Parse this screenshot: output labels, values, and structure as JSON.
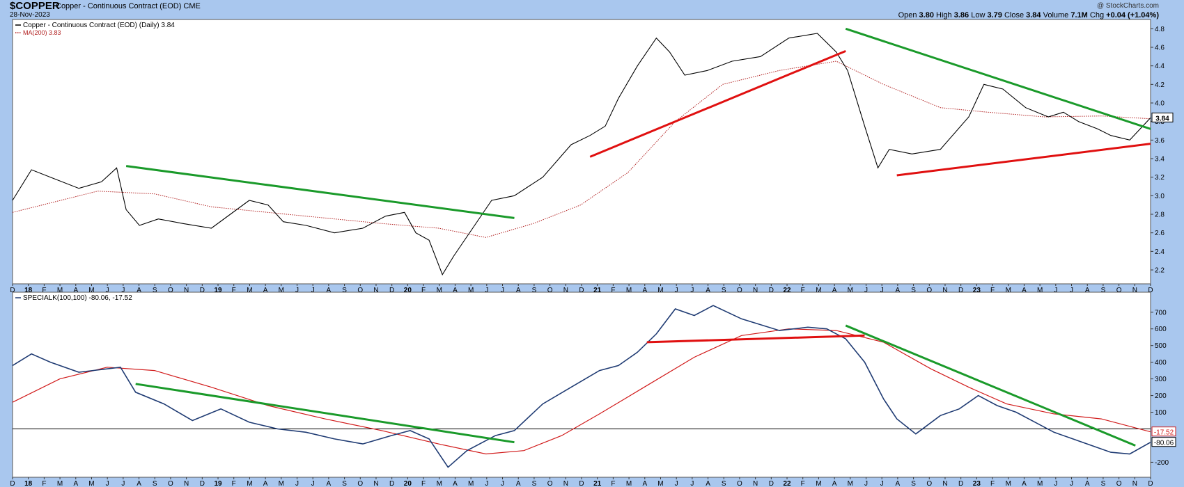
{
  "header": {
    "symbol": "$COPPER",
    "subtitle_name": "Copper - Continuous Contract (EOD)",
    "exchange": "CME",
    "date": "28-Nov-2023",
    "watermark": "@ StockCharts.com",
    "ohlc": {
      "open_label": "Open",
      "open": "3.80",
      "high_label": "High",
      "high": "3.86",
      "low_label": "Low",
      "low": "3.79",
      "close_label": "Close",
      "close": "3.84",
      "volume_label": "Volume",
      "volume": "7.1M",
      "chg_label": "Chg",
      "chg": "+0.04 (+1.04%)"
    }
  },
  "colors": {
    "background": "#a9c7ee",
    "panel": "#ffffff",
    "price_line": "#000000",
    "ma_line": "#b22222",
    "sk_line": "#1f3b73",
    "sk_signal": "#d11a1a",
    "resistance": "#1a9a2a",
    "support": "#e01010"
  },
  "chart_data": [
    {
      "type": "line",
      "panel": "price",
      "legend": [
        {
          "label": "Copper - Continuous Contract (EOD) (Daily) 3.84",
          "style": "solid"
        },
        {
          "label": "MA(200) 3.83",
          "style": "dotted"
        }
      ],
      "y_ticks": [
        "4.8",
        "4.6",
        "4.4",
        "4.2",
        "4.0",
        "3.8",
        "3.6",
        "3.4",
        "3.2",
        "3.0",
        "2.8",
        "2.6",
        "2.4",
        "2.2"
      ],
      "ylim": [
        2.05,
        4.9
      ],
      "last_value_label": "3.84",
      "x_range": [
        2017.95,
        2023.96
      ],
      "series": [
        {
          "name": "Copper - Continuous Contract (EOD) (Daily)",
          "x": [
            2017.95,
            2018.05,
            2018.15,
            2018.3,
            2018.42,
            2018.5,
            2018.55,
            2018.62,
            2018.72,
            2018.85,
            2019.0,
            2019.1,
            2019.2,
            2019.3,
            2019.38,
            2019.5,
            2019.65,
            2019.8,
            2019.92,
            2020.02,
            2020.08,
            2020.15,
            2020.22,
            2020.28,
            2020.38,
            2020.48,
            2020.6,
            2020.75,
            2020.9,
            2021.0,
            2021.08,
            2021.15,
            2021.25,
            2021.35,
            2021.42,
            2021.5,
            2021.62,
            2021.75,
            2021.9,
            2022.05,
            2022.2,
            2022.3,
            2022.36,
            2022.45,
            2022.52,
            2022.58,
            2022.7,
            2022.85,
            2023.0,
            2023.08,
            2023.18,
            2023.3,
            2023.42,
            2023.5,
            2023.58,
            2023.68,
            2023.75,
            2023.85,
            2023.96
          ],
          "y": [
            2.95,
            3.28,
            3.2,
            3.08,
            3.15,
            3.3,
            2.85,
            2.68,
            2.75,
            2.7,
            2.65,
            2.8,
            2.95,
            2.9,
            2.72,
            2.68,
            2.6,
            2.65,
            2.78,
            2.82,
            2.6,
            2.52,
            2.15,
            2.35,
            2.65,
            2.95,
            3.0,
            3.2,
            3.55,
            3.65,
            3.75,
            4.05,
            4.4,
            4.7,
            4.55,
            4.3,
            4.35,
            4.45,
            4.5,
            4.7,
            4.75,
            4.55,
            4.35,
            3.75,
            3.3,
            3.5,
            3.45,
            3.5,
            3.85,
            4.2,
            4.15,
            3.95,
            3.85,
            3.9,
            3.8,
            3.72,
            3.65,
            3.6,
            3.84
          ]
        },
        {
          "name": "MA(200)",
          "x": [
            2017.95,
            2018.4,
            2018.7,
            2019.0,
            2019.5,
            2019.9,
            2020.2,
            2020.45,
            2020.7,
            2020.95,
            2021.2,
            2021.45,
            2021.7,
            2022.0,
            2022.3,
            2022.55,
            2022.85,
            2023.1,
            2023.4,
            2023.7,
            2023.96
          ],
          "y": [
            2.82,
            3.05,
            3.02,
            2.88,
            2.78,
            2.7,
            2.65,
            2.55,
            2.7,
            2.9,
            3.25,
            3.8,
            4.2,
            4.35,
            4.45,
            4.2,
            3.95,
            3.9,
            3.85,
            3.86,
            3.83
          ]
        }
      ],
      "trendlines": [
        {
          "color": "green",
          "x": [
            2018.55,
            2020.6
          ],
          "y": [
            3.32,
            2.76
          ]
        },
        {
          "color": "red",
          "x": [
            2021.0,
            2022.35
          ],
          "y": [
            3.42,
            4.56
          ]
        },
        {
          "color": "green",
          "x": [
            2022.35,
            2023.96
          ],
          "y": [
            4.8,
            3.72
          ]
        },
        {
          "color": "red",
          "x": [
            2022.62,
            2023.96
          ],
          "y": [
            3.22,
            3.56
          ]
        }
      ]
    },
    {
      "type": "line",
      "panel": "indicator",
      "legend": [
        {
          "label": "SPECIALK(100,100) -80.06, -17.52",
          "style": "solid"
        }
      ],
      "y_ticks": [
        "700",
        "600",
        "500",
        "400",
        "300",
        "200",
        "100",
        "-200"
      ],
      "ylim": [
        -290,
        820
      ],
      "last_value_labels": [
        "-17.52",
        "-80.06"
      ],
      "x_range": [
        2017.95,
        2023.96
      ],
      "series": [
        {
          "name": "SPECIALK",
          "x": [
            2017.95,
            2018.05,
            2018.15,
            2018.3,
            2018.45,
            2018.52,
            2018.6,
            2018.75,
            2018.9,
            2019.05,
            2019.2,
            2019.35,
            2019.5,
            2019.65,
            2019.8,
            2019.95,
            2020.05,
            2020.15,
            2020.25,
            2020.35,
            2020.5,
            2020.6,
            2020.75,
            2020.9,
            2021.05,
            2021.15,
            2021.25,
            2021.35,
            2021.45,
            2021.55,
            2021.65,
            2021.8,
            2022.0,
            2022.15,
            2022.25,
            2022.35,
            2022.45,
            2022.55,
            2022.62,
            2022.72,
            2022.85,
            2022.95,
            2023.05,
            2023.15,
            2023.25,
            2023.35,
            2023.45,
            2023.55,
            2023.65,
            2023.75,
            2023.85,
            2023.96
          ],
          "y": [
            380,
            450,
            400,
            340,
            360,
            370,
            220,
            150,
            50,
            120,
            40,
            0,
            -20,
            -60,
            -90,
            -40,
            -10,
            -60,
            -230,
            -130,
            -40,
            -10,
            150,
            250,
            350,
            380,
            460,
            570,
            720,
            680,
            740,
            660,
            590,
            610,
            600,
            540,
            400,
            180,
            60,
            -30,
            80,
            120,
            200,
            140,
            100,
            40,
            -20,
            -60,
            -100,
            -140,
            -150,
            -80
          ]
        },
        {
          "name": "Signal",
          "x": [
            2017.95,
            2018.2,
            2018.45,
            2018.7,
            2019.0,
            2019.3,
            2019.6,
            2019.9,
            2020.2,
            2020.45,
            2020.65,
            2020.85,
            2021.05,
            2021.3,
            2021.55,
            2021.8,
            2022.05,
            2022.3,
            2022.55,
            2022.8,
            2023.0,
            2023.2,
            2023.45,
            2023.7,
            2023.96
          ],
          "y": [
            160,
            300,
            370,
            350,
            250,
            140,
            60,
            -10,
            -90,
            -150,
            -130,
            -40,
            90,
            260,
            430,
            560,
            600,
            590,
            520,
            360,
            250,
            150,
            90,
            60,
            -17.52
          ]
        }
      ],
      "trendlines": [
        {
          "color": "green",
          "x": [
            2018.6,
            2020.6
          ],
          "y": [
            270,
            -80
          ]
        },
        {
          "color": "red",
          "x": [
            2021.3,
            2022.45
          ],
          "y": [
            520,
            560
          ]
        },
        {
          "color": "green",
          "x": [
            2022.35,
            2023.88
          ],
          "y": [
            620,
            -100
          ]
        }
      ]
    }
  ],
  "x_axis_labels": [
    "D",
    "18",
    "F",
    "M",
    "A",
    "M",
    "J",
    "J",
    "A",
    "S",
    "O",
    "N",
    "D",
    "19",
    "F",
    "M",
    "A",
    "M",
    "J",
    "J",
    "A",
    "S",
    "O",
    "N",
    "D",
    "20",
    "F",
    "M",
    "A",
    "M",
    "J",
    "J",
    "A",
    "S",
    "O",
    "N",
    "D",
    "21",
    "F",
    "M",
    "A",
    "M",
    "J",
    "J",
    "A",
    "S",
    "O",
    "N",
    "D",
    "22",
    "F",
    "M",
    "A",
    "M",
    "J",
    "J",
    "A",
    "S",
    "O",
    "N",
    "D",
    "23",
    "F",
    "M",
    "A",
    "M",
    "J",
    "J",
    "A",
    "S",
    "O",
    "N",
    "D"
  ]
}
